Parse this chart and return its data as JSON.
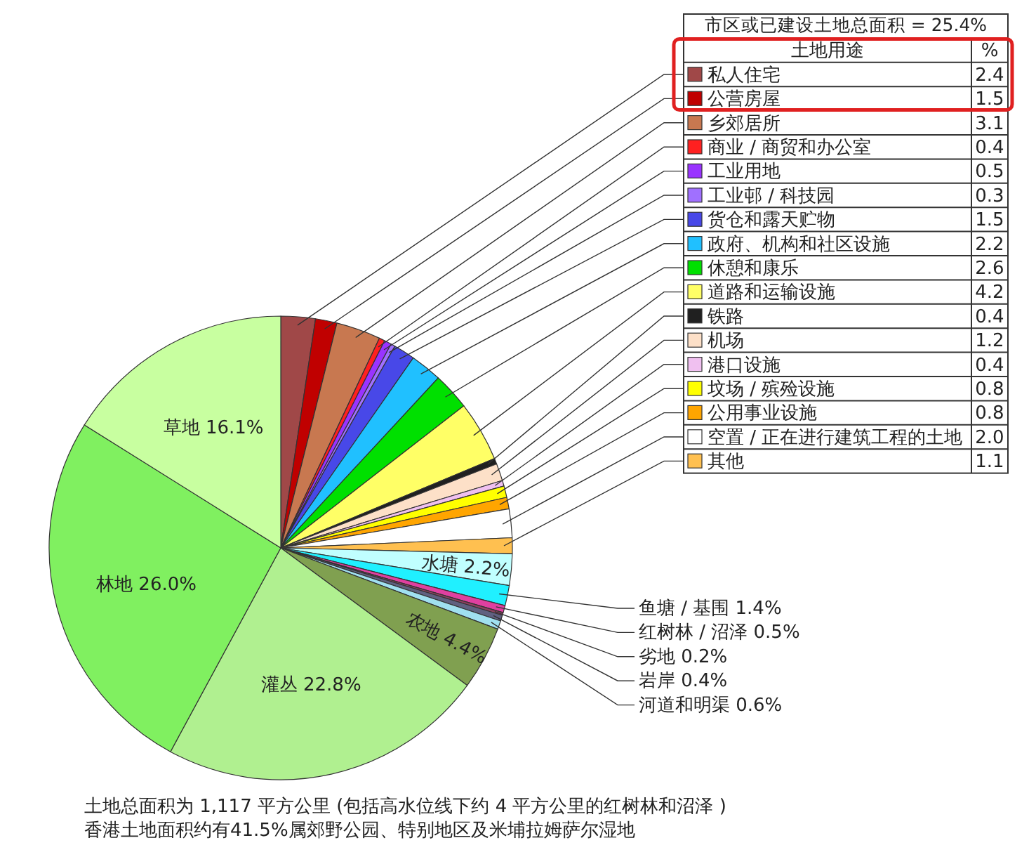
{
  "chart_data": {
    "type": "pie",
    "legend_title": "市区或已建设土地总面积 = 25.4%",
    "legend": "top right",
    "categories": [
      "私人住宅",
      "公营房屋",
      "乡郊居所",
      "商业 / 商贸和办公室",
      "工业用地",
      "工业邨 / 科技园",
      "货仓和露天贮物",
      "政府、机构和社区设施",
      "休憩和康乐",
      "道路和运输设施",
      "铁路",
      "机场",
      "港口设施",
      "坟场 / 殡殓设施",
      "公用事业设施",
      "空置 / 正在进行建筑工程的土地",
      "其他",
      "水塘",
      "鱼塘 / 基围",
      "红树林 / 沼泽",
      "劣地",
      "岩岸",
      "河道和明渠",
      "农地",
      "灌丛",
      "林地",
      "草地"
    ],
    "values": [
      2.4,
      1.5,
      3.1,
      0.4,
      0.5,
      0.3,
      1.5,
      2.2,
      2.6,
      4.2,
      0.4,
      1.2,
      0.4,
      0.8,
      0.8,
      2.0,
      1.1,
      2.2,
      1.4,
      0.5,
      0.2,
      0.4,
      0.6,
      4.4,
      22.8,
      26.0,
      16.1
    ],
    "value_labels": [
      "2.4",
      "1.5",
      "3.1",
      "0.4",
      "0.5",
      "0.3",
      "1.5",
      "2.2",
      "2.6",
      "4.2",
      "0.4",
      "1.2",
      "0.4",
      "0.8",
      "0.8",
      "2.0",
      "1.1",
      "2.2%",
      "1.4%",
      "0.5%",
      "0.2%",
      "0.4%",
      "0.6%",
      "4.4%",
      "22.8%",
      "26.0%",
      "16.1%"
    ],
    "colors": [
      "#a04848",
      "#c00000",
      "#c87850",
      "#ff2020",
      "#9933ff",
      "#a070ff",
      "#4848e8",
      "#20c0ff",
      "#00e000",
      "#ffff66",
      "#202020",
      "#fde0c8",
      "#f0c0f0",
      "#ffff00",
      "#ffa500",
      "#ffffff",
      "#ffc050",
      "#c0ffff",
      "#20f0ff",
      "#e040a0",
      "#904060",
      "#606080",
      "#a0e0f0",
      "#80a050",
      "#b0f090",
      "#80f060",
      "#c8ffa0"
    ],
    "annotations": [
      "土地用途",
      "%",
      "土地总面积为 1,117 平方公里 (包括高水位线下约 4 平方公里的红树林和沼泽 )",
      "香港土地面积约有41.5%属郊野公园、特别地区及米埔拉姆萨尔湿地"
    ]
  }
}
